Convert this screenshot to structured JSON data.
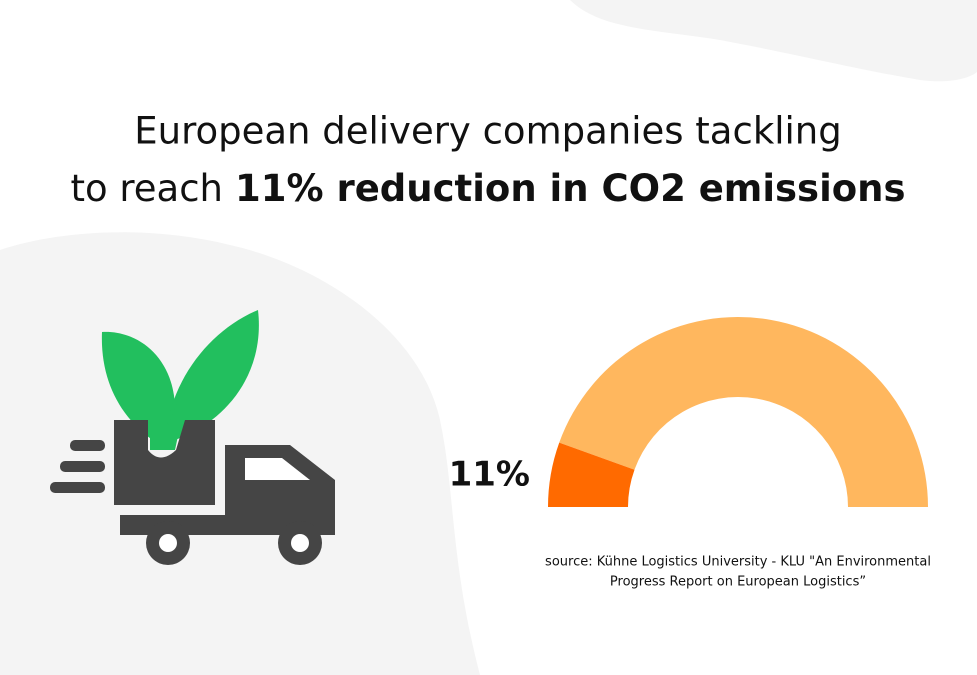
{
  "chart_data": {
    "type": "gauge",
    "title_lines": [
      "European delivery companies tackling",
      "to reach"
    ],
    "title_highlight": "11% reduction in CO2 emissions",
    "values": [
      11
    ],
    "value_labels": [
      "11%"
    ],
    "color": "#ff6a00",
    "track_color": "#ffb75e",
    "ylim": [
      0,
      100
    ],
    "source_lines": [
      "source: Kühne Logistics University - KLU \"An Environmental",
      "Progress Report on European Logistics”"
    ]
  }
}
